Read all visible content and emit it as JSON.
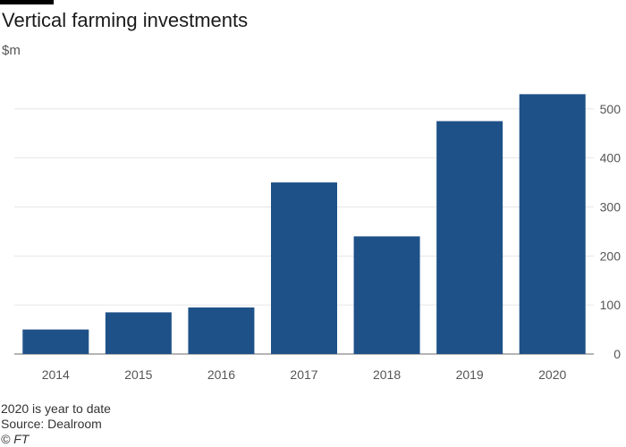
{
  "header": {
    "title": "Vertical farming investments",
    "unit": "$m"
  },
  "chart_data": {
    "type": "bar",
    "title": "Vertical farming investments",
    "ylabel": "$m",
    "xlabel": "",
    "categories": [
      "2014",
      "2015",
      "2016",
      "2017",
      "2018",
      "2019",
      "2020"
    ],
    "values": [
      50,
      85,
      95,
      350,
      240,
      475,
      530
    ],
    "ylim": [
      0,
      550
    ],
    "yticks": [
      0,
      100,
      200,
      300,
      400,
      500
    ],
    "y_axis_side": "right",
    "grid": true,
    "bar_color": "#1e5188"
  },
  "footer": {
    "note": "2020 is year to date",
    "source": "Source: Dealroom",
    "credit": "© FT"
  }
}
